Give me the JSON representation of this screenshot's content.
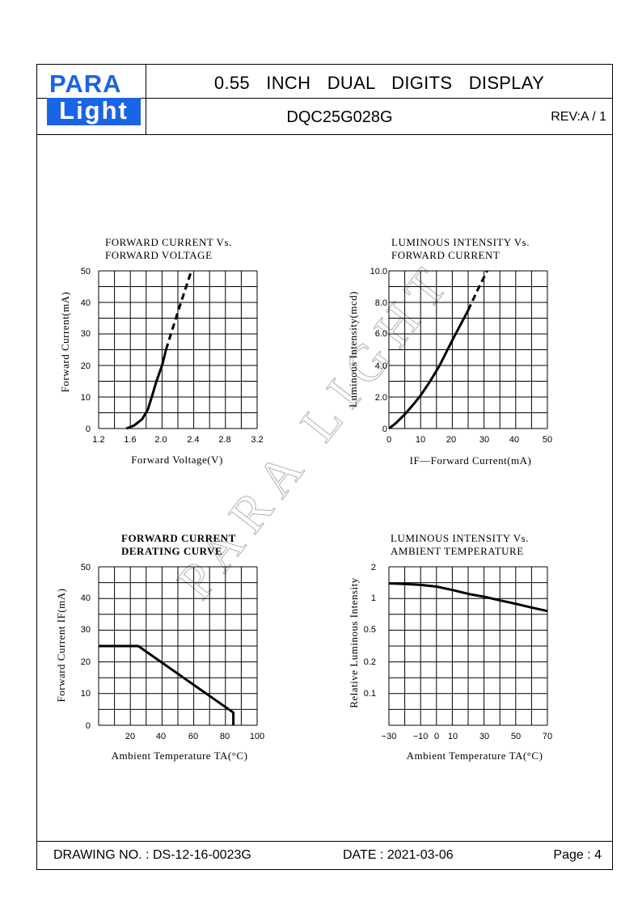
{
  "header": {
    "logo_top": "PARA",
    "logo_bottom": "ight",
    "logo_l": "L",
    "title": "0.55 INCH DUAL DIGITS DISPLAY",
    "part_no": "DQC25G028G",
    "revision": "REV:A / 1"
  },
  "watermark": "PARA LIGHT",
  "footer": {
    "drawing_no": "DRAWING NO. : DS-12-16-0023G",
    "date": "DATE : 2021-03-06",
    "page": "Page : 4"
  },
  "chart_data": [
    {
      "type": "line",
      "title": "FORWARD CURRENT Vs.",
      "subtitle": "FORWARD VOLTAGE",
      "xlabel": "Forward Voltage(V)",
      "ylabel": "Forward Current(mA)",
      "xlim": [
        1.2,
        3.2
      ],
      "ylim": [
        0,
        50
      ],
      "x_ticks": [
        "1.2",
        "1.6",
        "2.0",
        "2.4",
        "2.8",
        "3.2"
      ],
      "y_ticks": [
        "0",
        "10",
        "20",
        "30",
        "40",
        "50"
      ],
      "grid": true,
      "series": [
        {
          "style": "solid",
          "x": [
            1.55,
            1.65,
            1.75,
            1.82,
            1.87,
            1.93,
            2.0,
            2.05
          ],
          "y": [
            0,
            1,
            3,
            6,
            10,
            15,
            20,
            25
          ]
        },
        {
          "style": "dashed",
          "x": [
            2.05,
            2.2,
            2.37
          ],
          "y": [
            25,
            37,
            50
          ]
        }
      ]
    },
    {
      "type": "line",
      "title": "LUMINOUS INTENSITY Vs.",
      "subtitle": "FORWARD CURRENT",
      "xlabel": "IF—Forward Current(mA)",
      "ylabel": "Luminous Intensity(mcd)",
      "xlim": [
        0,
        50
      ],
      "ylim": [
        0,
        10
      ],
      "x_ticks": [
        "0",
        "10",
        "20",
        "30",
        "40",
        "50"
      ],
      "y_ticks": [
        "0",
        "2.0",
        "4.0",
        "6.0",
        "8.0",
        "10.0"
      ],
      "grid": true,
      "series": [
        {
          "style": "solid",
          "x": [
            0,
            2,
            5,
            8,
            10,
            13,
            16,
            20,
            25
          ],
          "y": [
            0,
            0.3,
            0.9,
            1.6,
            2.1,
            3.0,
            4.0,
            5.6,
            7.5
          ]
        },
        {
          "style": "dashed",
          "x": [
            25,
            28,
            31
          ],
          "y": [
            7.5,
            8.8,
            10
          ]
        }
      ]
    },
    {
      "type": "line",
      "title": "FORWARD CURRENT",
      "subtitle": "DERATING CURVE",
      "xlabel": "Ambient Temperature TA(°C)",
      "ylabel": "Forward Current IF(mA)",
      "xlim": [
        0,
        100
      ],
      "ylim": [
        0,
        50
      ],
      "x_ticks": [
        "20",
        "40",
        "60",
        "80",
        "100"
      ],
      "y_ticks": [
        "0",
        "10",
        "20",
        "30",
        "40",
        "50"
      ],
      "grid": true,
      "series": [
        {
          "style": "solid",
          "x": [
            0,
            25,
            85,
            85
          ],
          "y": [
            25,
            25,
            4,
            0
          ]
        }
      ]
    },
    {
      "type": "line",
      "title": "LUMINOUS INTENSITY Vs.",
      "subtitle": "AMBIENT TEMPERATURE",
      "xlabel": "Ambient Temperature TA(°C)",
      "ylabel": "Relative Luminous Intensity",
      "x_ticks": [
        "−30",
        "−10",
        "0",
        "10",
        "30",
        "50",
        "70"
      ],
      "y_ticks": [
        "0.1",
        "0.2",
        "0.5",
        "1",
        "2"
      ],
      "grid": true,
      "series": [
        {
          "style": "solid",
          "x": [
            -30,
            -20,
            -10,
            0,
            10,
            20,
            30,
            40,
            50,
            60,
            70
          ],
          "y": [
            1.35,
            1.33,
            1.3,
            1.25,
            1.15,
            1.05,
            0.98,
            0.9,
            0.83,
            0.76,
            0.7
          ]
        }
      ]
    }
  ]
}
